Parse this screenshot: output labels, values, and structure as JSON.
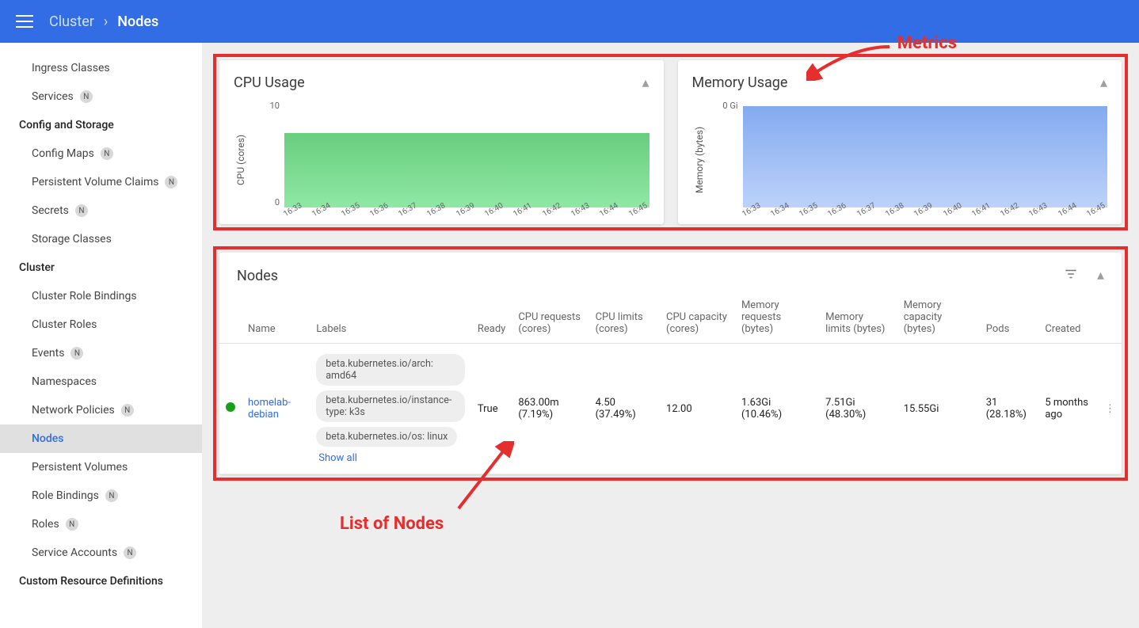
{
  "header": {
    "breadcrumb_root": "Cluster",
    "breadcrumb_current": "Nodes"
  },
  "annotations": {
    "metrics": "Metrics",
    "nodes_list": "List of Nodes",
    "color": "#e52e2e"
  },
  "sidebar": {
    "items": [
      {
        "label": "Ingress Classes",
        "active": false
      },
      {
        "label": "Services",
        "badge": "N",
        "active": false
      }
    ],
    "sections": [
      {
        "heading": "Config and Storage",
        "items": [
          {
            "label": "Config Maps",
            "badge": "N"
          },
          {
            "label": "Persistent Volume Claims",
            "badge": "N"
          },
          {
            "label": "Secrets",
            "badge": "N"
          },
          {
            "label": "Storage Classes"
          }
        ]
      },
      {
        "heading": "Cluster",
        "items": [
          {
            "label": "Cluster Role Bindings"
          },
          {
            "label": "Cluster Roles"
          },
          {
            "label": "Events",
            "badge": "N"
          },
          {
            "label": "Namespaces"
          },
          {
            "label": "Network Policies",
            "badge": "N"
          },
          {
            "label": "Nodes",
            "active": true
          },
          {
            "label": "Persistent Volumes"
          },
          {
            "label": "Role Bindings",
            "badge": "N"
          },
          {
            "label": "Roles",
            "badge": "N"
          },
          {
            "label": "Service Accounts",
            "badge": "N"
          }
        ]
      },
      {
        "heading": "Custom Resource Definitions",
        "items": []
      }
    ]
  },
  "charts": {
    "cpu": {
      "title": "CPU Usage",
      "y_label": "CPU (cores)",
      "yticks": [
        "10",
        "0"
      ],
      "fill_top_pct": 30,
      "gradient": [
        "#68ce7e",
        "#8fe8a4"
      ],
      "xticks": [
        "16:33",
        "16:34",
        "16:35",
        "16:36",
        "16:37",
        "16:38",
        "16:39",
        "16:40",
        "16:41",
        "16:42",
        "16:43",
        "16:44",
        "16:45"
      ]
    },
    "memory": {
      "title": "Memory Usage",
      "y_label": "Memory (bytes)",
      "yticks": [
        "0 Gi"
      ],
      "fill_top_pct": 5,
      "gradient": [
        "#84aaf0",
        "#bcd2fa"
      ],
      "xticks": [
        "16:33",
        "16:34",
        "16:35",
        "16:36",
        "16:37",
        "16:38",
        "16:39",
        "16:40",
        "16:41",
        "16:42",
        "16:43",
        "16:44",
        "16:45"
      ]
    }
  },
  "nodes_table": {
    "title": "Nodes",
    "columns": [
      "",
      "Name",
      "Labels",
      "Ready",
      "CPU requests (cores)",
      "CPU limits (cores)",
      "CPU capacity (cores)",
      "Memory requests (bytes)",
      "Memory limits (bytes)",
      "Memory capacity (bytes)",
      "Pods",
      "Created",
      ""
    ],
    "rows": [
      {
        "status_color": "#1a9e1a",
        "name": "homelab-debian",
        "labels": [
          "beta.kubernetes.io/arch: amd64",
          "beta.kubernetes.io/instance-type: k3s",
          "beta.kubernetes.io/os: linux"
        ],
        "show_all": "Show all",
        "ready": "True",
        "cpu_req": "863.00m (7.19%)",
        "cpu_lim": "4.50 (37.49%)",
        "cpu_cap": "12.00",
        "mem_req": "1.63Gi (10.46%)",
        "mem_lim": "7.51Gi (48.30%)",
        "mem_cap": "15.55Gi",
        "pods": "31 (28.18%)",
        "created": "5 months ago"
      }
    ]
  },
  "colors": {
    "primary": "#326de6",
    "annotation": "#e52e2e",
    "bg": "#eeeeee"
  }
}
